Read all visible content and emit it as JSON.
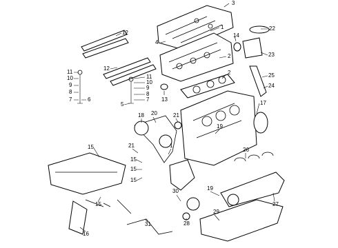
{
  "callouts": [
    "3",
    "1",
    "4",
    "14",
    "22",
    "12",
    "12",
    "2",
    "23",
    "25",
    "24",
    "11",
    "10",
    "9",
    "8",
    "7",
    "6",
    "11",
    "10",
    "9",
    "8",
    "7",
    "5",
    "13",
    "2",
    "17",
    "18",
    "20",
    "21",
    "19",
    "15",
    "21",
    "1",
    "15",
    "15",
    "15",
    "26",
    "15",
    "16",
    "19",
    "30",
    "27",
    "31",
    "28",
    "29"
  ]
}
